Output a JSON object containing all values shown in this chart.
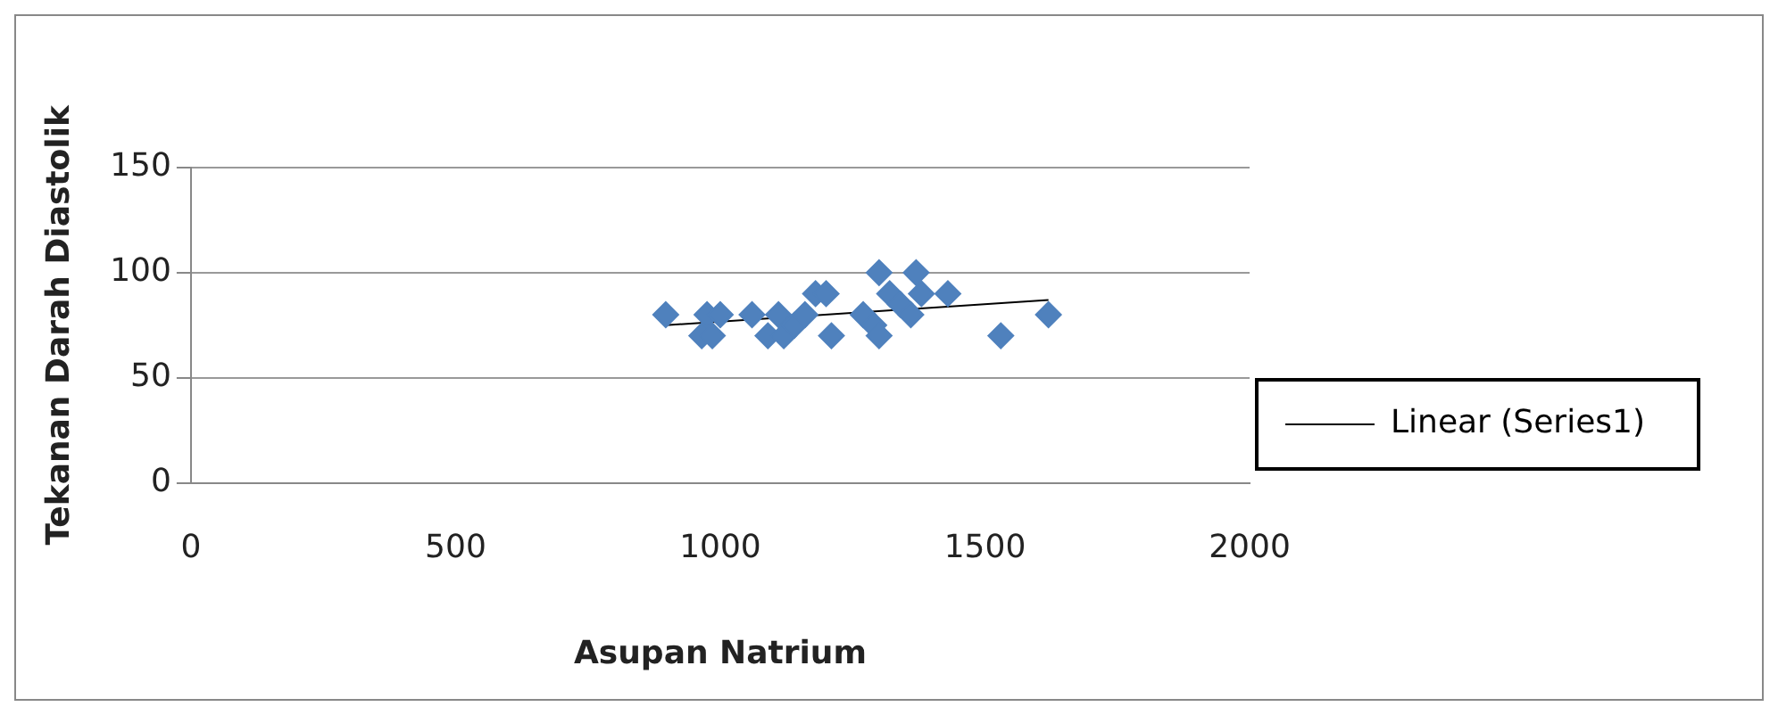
{
  "chart_data": {
    "type": "scatter",
    "xlabel": "Asupan Natrium",
    "ylabel": "Tekanan Darah Diastolik",
    "xlim": [
      0,
      2000
    ],
    "xticks": [
      0,
      500,
      1000,
      1500,
      2000
    ],
    "ylim": [
      0,
      150
    ],
    "yticks": [
      0,
      50,
      100,
      150
    ],
    "grid": "y",
    "legend": "right",
    "marker": "diamond",
    "series": [
      {
        "color": "#4f81bd",
        "x": [
          897,
          960,
          965,
          975,
          985,
          995,
          1000,
          1060,
          1080,
          1090,
          1100,
          1110,
          1120,
          1140,
          1160,
          1180,
          1200,
          1210,
          1270,
          1290,
          1300,
          1300,
          1320,
          1340,
          1360,
          1370,
          1380,
          1430,
          1530,
          1620
        ],
        "values": [
          80,
          null,
          70,
          80,
          70,
          null,
          80,
          80,
          null,
          70,
          null,
          80,
          70,
          75,
          80,
          90,
          90,
          70,
          80,
          75,
          100,
          70,
          90,
          85,
          80,
          100,
          90,
          90,
          70,
          80
        ]
      },
      {
        "type": "line",
        "name": "Linear (Series1)",
        "color": "#000000",
        "marker": "none",
        "line_style": "solid",
        "x": [
          897,
          1620
        ],
        "values": [
          75,
          87
        ]
      }
    ]
  }
}
